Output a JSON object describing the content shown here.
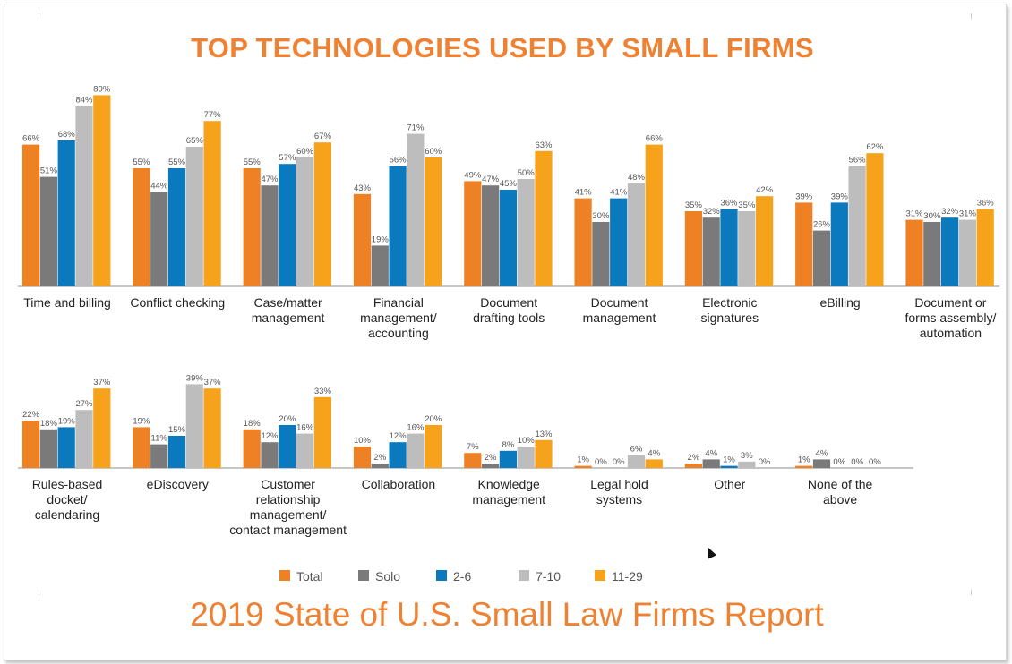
{
  "title": "TOP TECHNOLOGIES USED BY SMALL FIRMS",
  "footer": "2019 State of U.S. Small Law Firms Report",
  "colors": {
    "Total": "#ee8123",
    "Solo": "#7a7a7a",
    "2-6": "#0a79be",
    "7-10": "#bdbdbd",
    "11-29": "#f7a21b"
  },
  "chart_data": {
    "type": "bar",
    "value_suffix": "%",
    "series_names": [
      "Total",
      "Solo",
      "2-6",
      "7-10",
      "11-29"
    ],
    "legend_position": "bottom",
    "grid": false,
    "panels": [
      {
        "categories": [
          [
            "Time and billing"
          ],
          [
            "Conflict checking"
          ],
          [
            "Case/matter",
            "management"
          ],
          [
            "Financial",
            "management/",
            "accounting"
          ],
          [
            "Document",
            "drafting tools"
          ],
          [
            "Document",
            "management"
          ],
          [
            "Electronic",
            "signatures"
          ],
          [
            "eBilling"
          ],
          [
            "Document or",
            "forms assembly/",
            "automation"
          ]
        ],
        "series": [
          {
            "name": "Total",
            "values": [
              66,
              55,
              55,
              43,
              49,
              41,
              35,
              39,
              31
            ]
          },
          {
            "name": "Solo",
            "values": [
              51,
              44,
              47,
              19,
              47,
              30,
              32,
              26,
              30
            ]
          },
          {
            "name": "2-6",
            "values": [
              68,
              55,
              57,
              56,
              45,
              41,
              36,
              39,
              32
            ]
          },
          {
            "name": "7-10",
            "values": [
              84,
              65,
              60,
              71,
              50,
              48,
              35,
              56,
              31
            ]
          },
          {
            "name": "11-29",
            "values": [
              89,
              77,
              67,
              60,
              63,
              66,
              42,
              62,
              36
            ]
          }
        ]
      },
      {
        "categories": [
          [
            "Rules-based",
            "docket/",
            "calendaring"
          ],
          [
            "eDiscovery"
          ],
          [
            "Customer",
            "relationship",
            "management/",
            "contact management"
          ],
          [
            "Collaboration"
          ],
          [
            "Knowledge",
            "management"
          ],
          [
            "Legal hold",
            "systems"
          ],
          [
            "Other"
          ],
          [
            "None of the",
            "above"
          ]
        ],
        "series": [
          {
            "name": "Total",
            "values": [
              22,
              19,
              18,
              10,
              7,
              1,
              2,
              1
            ]
          },
          {
            "name": "Solo",
            "values": [
              18,
              11,
              12,
              2,
              2,
              0,
              4,
              4
            ]
          },
          {
            "name": "2-6",
            "values": [
              19,
              15,
              20,
              12,
              8,
              0,
              1,
              0
            ]
          },
          {
            "name": "7-10",
            "values": [
              27,
              39,
              16,
              16,
              10,
              6,
              3,
              0
            ]
          },
          {
            "name": "11-29",
            "values": [
              37,
              37,
              33,
              20,
              13,
              4,
              0,
              0
            ]
          }
        ]
      }
    ]
  }
}
